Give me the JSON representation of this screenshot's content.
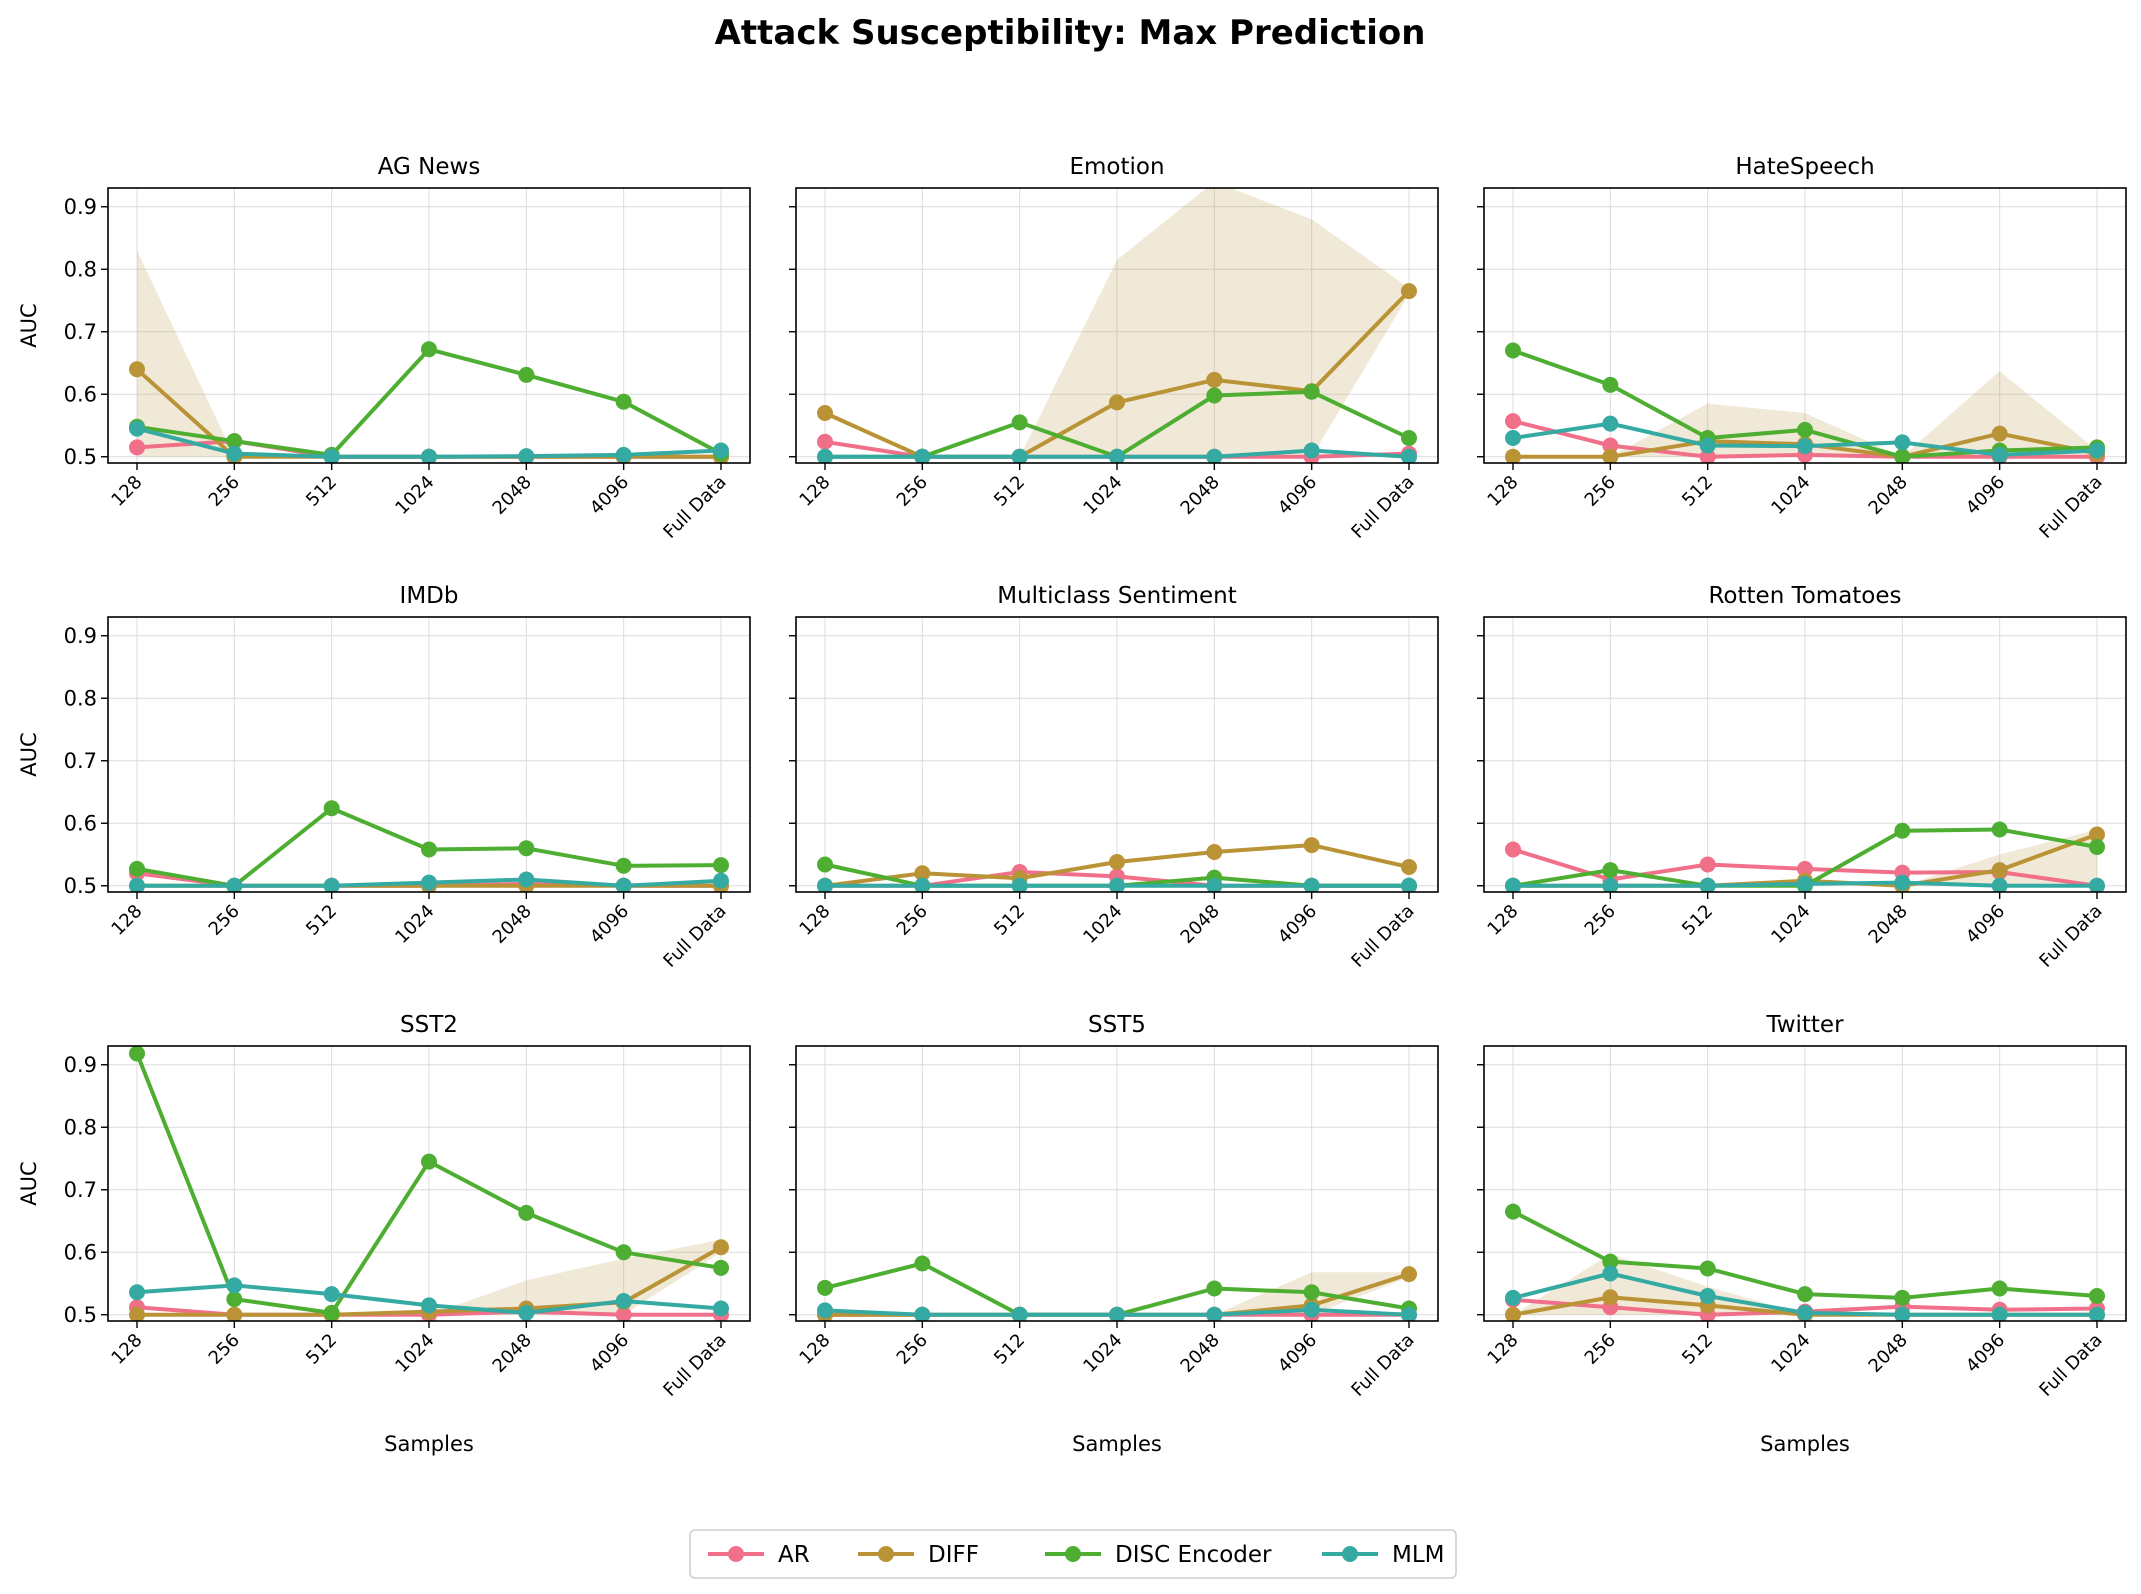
{
  "title": "Attack Susceptibility: Max Prediction",
  "chart_data": {
    "type": "line",
    "suptitle": "Attack Susceptibility: Max Prediction",
    "xlabel": "Samples",
    "ylabel": "AUC",
    "ylim": [
      0.49,
      0.93
    ],
    "yticks": [
      0.5,
      0.6,
      0.7,
      0.8,
      0.9
    ],
    "yticklabels": [
      "0.5",
      "0.6",
      "0.7",
      "0.8",
      "0.9"
    ],
    "categories": [
      "128",
      "256",
      "512",
      "1024",
      "2048",
      "4096",
      "Full Data"
    ],
    "grid": true,
    "legend_position": "bottom-center",
    "series_meta": [
      {
        "name": "AR",
        "color": "#f0708a"
      },
      {
        "name": "DIFF",
        "color": "#b99335"
      },
      {
        "name": "DISC Encoder",
        "color": "#4dae32"
      },
      {
        "name": "MLM",
        "color": "#35aaa3"
      }
    ],
    "band_color": "#b99335",
    "panels": [
      {
        "title": "AG News",
        "series": [
          {
            "name": "AR",
            "values": [
              0.515,
              0.525,
              0.5,
              0.5,
              0.5,
              0.5,
              0.5
            ]
          },
          {
            "name": "DIFF",
            "values": [
              0.64,
              0.5,
              0.5,
              0.5,
              0.5,
              0.5,
              0.5
            ]
          },
          {
            "name": "DISC Encoder",
            "values": [
              0.548,
              0.525,
              0.503,
              0.672,
              0.631,
              0.588,
              0.505
            ]
          },
          {
            "name": "MLM",
            "values": [
              0.545,
              0.505,
              0.5,
              0.5,
              0.501,
              0.503,
              0.51
            ]
          }
        ],
        "band": {
          "upper": [
            0.83,
            0.5,
            0.5,
            0.5,
            0.5,
            0.5,
            0.5
          ],
          "lower": [
            0.5,
            0.5,
            0.5,
            0.5,
            0.5,
            0.5,
            0.5
          ]
        }
      },
      {
        "title": "Emotion",
        "series": [
          {
            "name": "AR",
            "values": [
              0.524,
              0.5,
              0.5,
              0.5,
              0.5,
              0.5,
              0.505
            ]
          },
          {
            "name": "DIFF",
            "values": [
              0.57,
              0.5,
              0.5,
              0.587,
              0.623,
              0.605,
              0.765
            ]
          },
          {
            "name": "DISC Encoder",
            "values": [
              0.5,
              0.5,
              0.555,
              0.5,
              0.598,
              0.604,
              0.53
            ]
          },
          {
            "name": "MLM",
            "values": [
              0.5,
              0.5,
              0.5,
              0.5,
              0.5,
              0.51,
              0.5
            ]
          }
        ],
        "band": {
          "upper": [
            0.5,
            0.5,
            0.5,
            0.815,
            0.94,
            0.88,
            0.77
          ],
          "lower": [
            0.5,
            0.5,
            0.5,
            0.5,
            0.5,
            0.5,
            0.76
          ]
        }
      },
      {
        "title": "HateSpeech",
        "series": [
          {
            "name": "AR",
            "values": [
              0.557,
              0.518,
              0.5,
              0.503,
              0.5,
              0.5,
              0.5
            ]
          },
          {
            "name": "DIFF",
            "values": [
              0.5,
              0.5,
              0.525,
              0.52,
              0.5,
              0.537,
              0.505
            ]
          },
          {
            "name": "DISC Encoder",
            "values": [
              0.67,
              0.615,
              0.53,
              0.543,
              0.5,
              0.51,
              0.515
            ]
          },
          {
            "name": "MLM",
            "values": [
              0.53,
              0.553,
              0.518,
              0.517,
              0.523,
              0.503,
              0.51
            ]
          }
        ],
        "band": {
          "upper": [
            0.5,
            0.5,
            0.585,
            0.57,
            0.5,
            0.637,
            0.51
          ],
          "lower": [
            0.5,
            0.5,
            0.5,
            0.5,
            0.5,
            0.5,
            0.5
          ]
        }
      },
      {
        "title": "IMDb",
        "series": [
          {
            "name": "AR",
            "values": [
              0.52,
              0.5,
              0.5,
              0.5,
              0.503,
              0.5,
              0.5
            ]
          },
          {
            "name": "DIFF",
            "values": [
              0.5,
              0.5,
              0.5,
              0.5,
              0.5,
              0.5,
              0.5
            ]
          },
          {
            "name": "DISC Encoder",
            "values": [
              0.527,
              0.5,
              0.624,
              0.558,
              0.56,
              0.532,
              0.533
            ]
          },
          {
            "name": "MLM",
            "values": [
              0.5,
              0.5,
              0.5,
              0.505,
              0.51,
              0.5,
              0.508
            ]
          }
        ],
        "band": null
      },
      {
        "title": "Multiclass Sentiment",
        "series": [
          {
            "name": "AR",
            "values": [
              0.5,
              0.5,
              0.522,
              0.515,
              0.5,
              0.5,
              0.5
            ]
          },
          {
            "name": "DIFF",
            "values": [
              0.5,
              0.52,
              0.512,
              0.538,
              0.554,
              0.565,
              0.53
            ]
          },
          {
            "name": "DISC Encoder",
            "values": [
              0.534,
              0.5,
              0.5,
              0.5,
              0.513,
              0.5,
              0.5
            ]
          },
          {
            "name": "MLM",
            "values": [
              0.5,
              0.5,
              0.5,
              0.5,
              0.5,
              0.5,
              0.5
            ]
          }
        ],
        "band": null
      },
      {
        "title": "Rotten Tomatoes",
        "series": [
          {
            "name": "AR",
            "values": [
              0.558,
              0.51,
              0.534,
              0.527,
              0.521,
              0.522,
              0.5
            ]
          },
          {
            "name": "DIFF",
            "values": [
              0.5,
              0.5,
              0.5,
              0.508,
              0.5,
              0.525,
              0.582
            ]
          },
          {
            "name": "DISC Encoder",
            "values": [
              0.5,
              0.525,
              0.5,
              0.5,
              0.588,
              0.59,
              0.562
            ]
          },
          {
            "name": "MLM",
            "values": [
              0.5,
              0.5,
              0.5,
              0.503,
              0.505,
              0.5,
              0.5
            ]
          }
        ],
        "band": {
          "upper": [
            0.5,
            0.5,
            0.5,
            0.5,
            0.5,
            0.55,
            0.59
          ],
          "lower": [
            0.5,
            0.5,
            0.5,
            0.5,
            0.5,
            0.5,
            0.5
          ]
        }
      },
      {
        "title": "SST2",
        "series": [
          {
            "name": "AR",
            "values": [
              0.512,
              0.5,
              0.5,
              0.5,
              0.505,
              0.5,
              0.5
            ]
          },
          {
            "name": "DIFF",
            "values": [
              0.5,
              0.5,
              0.5,
              0.505,
              0.51,
              0.52,
              0.608
            ]
          },
          {
            "name": "DISC Encoder",
            "values": [
              0.918,
              0.525,
              0.503,
              0.745,
              0.663,
              0.6,
              0.575
            ]
          },
          {
            "name": "MLM",
            "values": [
              0.536,
              0.547,
              0.533,
              0.515,
              0.503,
              0.522,
              0.51
            ]
          }
        ],
        "band": {
          "upper": [
            0.5,
            0.5,
            0.5,
            0.5,
            0.555,
            0.59,
            0.62
          ],
          "lower": [
            0.5,
            0.5,
            0.5,
            0.5,
            0.5,
            0.5,
            0.6
          ]
        }
      },
      {
        "title": "SST5",
        "series": [
          {
            "name": "AR",
            "values": [
              0.5,
              0.5,
              0.5,
              0.5,
              0.5,
              0.5,
              0.5
            ]
          },
          {
            "name": "DIFF",
            "values": [
              0.5,
              0.5,
              0.5,
              0.5,
              0.5,
              0.515,
              0.565
            ]
          },
          {
            "name": "DISC Encoder",
            "values": [
              0.543,
              0.582,
              0.5,
              0.5,
              0.542,
              0.536,
              0.51
            ]
          },
          {
            "name": "MLM",
            "values": [
              0.507,
              0.5,
              0.5,
              0.5,
              0.5,
              0.508,
              0.5
            ]
          }
        ],
        "band": {
          "upper": [
            0.5,
            0.5,
            0.5,
            0.5,
            0.5,
            0.568,
            0.568
          ],
          "lower": [
            0.5,
            0.5,
            0.5,
            0.5,
            0.5,
            0.5,
            0.56
          ]
        }
      },
      {
        "title": "Twitter",
        "series": [
          {
            "name": "AR",
            "values": [
              0.524,
              0.512,
              0.5,
              0.505,
              0.513,
              0.508,
              0.51
            ]
          },
          {
            "name": "DIFF",
            "values": [
              0.5,
              0.528,
              0.515,
              0.5,
              0.5,
              0.5,
              0.5
            ]
          },
          {
            "name": "DISC Encoder",
            "values": [
              0.665,
              0.585,
              0.574,
              0.533,
              0.527,
              0.542,
              0.53
            ]
          },
          {
            "name": "MLM",
            "values": [
              0.527,
              0.566,
              0.53,
              0.503,
              0.5,
              0.5,
              0.5
            ]
          }
        ],
        "band": {
          "upper": [
            0.5,
            0.597,
            0.545,
            0.5,
            0.5,
            0.5,
            0.5
          ],
          "lower": [
            0.5,
            0.5,
            0.5,
            0.5,
            0.5,
            0.5,
            0.5
          ]
        }
      }
    ]
  }
}
